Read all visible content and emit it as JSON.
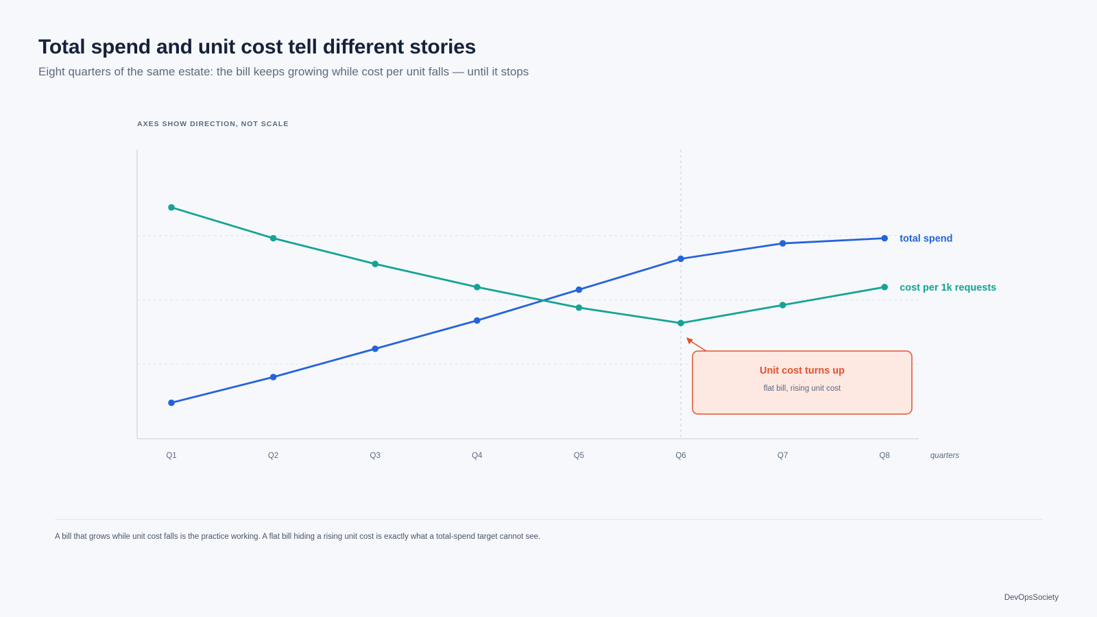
{
  "title": "Total spend and unit cost tell different stories",
  "subtitle": "Eight quarters of the same estate: the bill keeps growing while cost per unit falls — until it stops",
  "axes_note": "AXES SHOW DIRECTION, NOT SCALE",
  "footnote": "A bill that grows while unit cost falls is the practice working. A flat bill hiding a rising unit cost is exactly what a total-spend target cannot see.",
  "credit": "DevOpsSociety",
  "colors": {
    "total_spend": "#2563db",
    "unit_cost": "#14a396",
    "callout": "#e0532c",
    "callout_fill": "#fde8e2"
  },
  "chart_data": {
    "type": "line",
    "categories": [
      "Q1",
      "Q2",
      "Q3",
      "Q4",
      "Q5",
      "Q6",
      "Q7",
      "Q8"
    ],
    "xlabel": "quarters",
    "ylabel": "",
    "ylim": [
      0,
      100
    ],
    "grid": "horizontal dashed",
    "legend": "inline labels at line ends (right)",
    "series": [
      {
        "name": "total spend",
        "color": "#2563db",
        "values": [
          10,
          20,
          31,
          42,
          54,
          66,
          72,
          74
        ]
      },
      {
        "name": "cost per 1k requests",
        "color": "#14a396",
        "values": [
          86,
          74,
          64,
          55,
          47,
          41,
          48,
          55
        ]
      }
    ],
    "annotation": {
      "category": "Q6",
      "title": "Unit cost turns up",
      "text": "flat bill, rising unit cost"
    }
  }
}
